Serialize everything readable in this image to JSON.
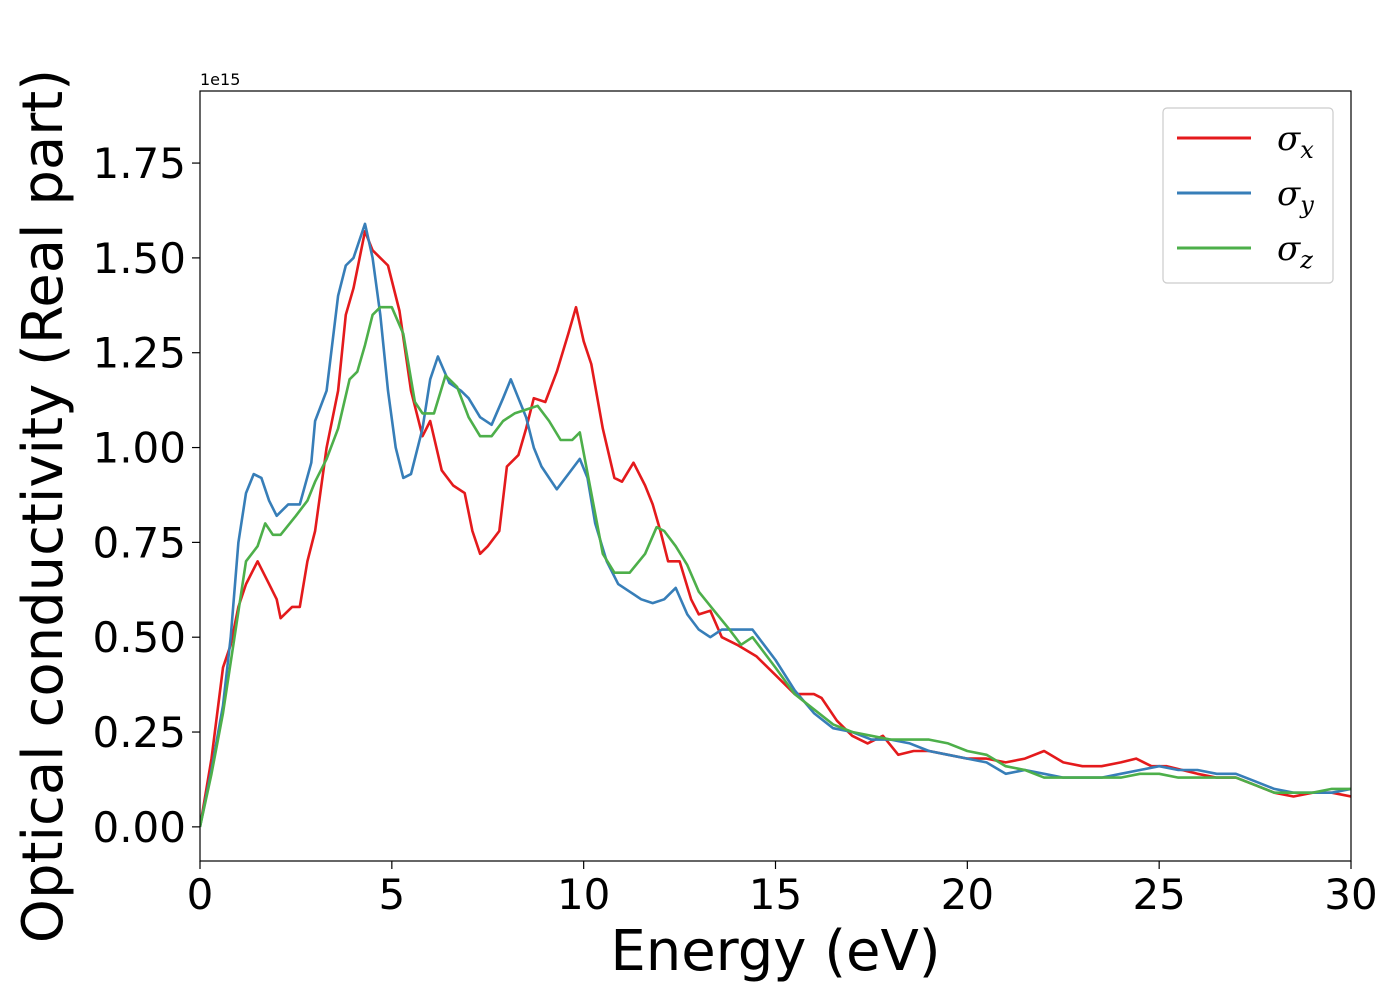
{
  "chart_data": {
    "type": "line",
    "title": "",
    "xlabel": "Energy (eV)",
    "ylabel": "Optical conductivity (Real part)",
    "y_offset_text": "1e15",
    "xlim": [
      0,
      30
    ],
    "ylim": [
      -0.09,
      1.94
    ],
    "x_ticks": [
      0,
      5,
      10,
      15,
      20,
      25,
      30
    ],
    "x_tick_labels": [
      "0",
      "5",
      "10",
      "15",
      "20",
      "25",
      "30"
    ],
    "y_ticks": [
      0.0,
      0.25,
      0.5,
      0.75,
      1.0,
      1.25,
      1.5,
      1.75
    ],
    "y_tick_labels": [
      "0.00",
      "0.25",
      "0.50",
      "0.75",
      "1.00",
      "1.25",
      "1.50",
      "1.75"
    ],
    "grid": false,
    "legend_position": "top-right",
    "series": [
      {
        "name": "σx",
        "legend_symbol": "σ",
        "legend_subscript": "x",
        "color": "#e41a1c",
        "points": [
          [
            0,
            0.0
          ],
          [
            0.3,
            0.18
          ],
          [
            0.6,
            0.42
          ],
          [
            0.8,
            0.48
          ],
          [
            1.0,
            0.58
          ],
          [
            1.2,
            0.64
          ],
          [
            1.5,
            0.7
          ],
          [
            1.8,
            0.64
          ],
          [
            2.0,
            0.6
          ],
          [
            2.1,
            0.55
          ],
          [
            2.4,
            0.58
          ],
          [
            2.6,
            0.58
          ],
          [
            2.8,
            0.7
          ],
          [
            3.0,
            0.78
          ],
          [
            3.3,
            1.0
          ],
          [
            3.6,
            1.15
          ],
          [
            3.8,
            1.35
          ],
          [
            4.0,
            1.42
          ],
          [
            4.3,
            1.57
          ],
          [
            4.5,
            1.52
          ],
          [
            4.7,
            1.5
          ],
          [
            4.9,
            1.48
          ],
          [
            5.2,
            1.36
          ],
          [
            5.5,
            1.15
          ],
          [
            5.8,
            1.03
          ],
          [
            6.0,
            1.07
          ],
          [
            6.3,
            0.94
          ],
          [
            6.6,
            0.9
          ],
          [
            6.9,
            0.88
          ],
          [
            7.1,
            0.78
          ],
          [
            7.3,
            0.72
          ],
          [
            7.5,
            0.74
          ],
          [
            7.8,
            0.78
          ],
          [
            8.0,
            0.95
          ],
          [
            8.3,
            0.98
          ],
          [
            8.5,
            1.05
          ],
          [
            8.7,
            1.13
          ],
          [
            9.0,
            1.12
          ],
          [
            9.3,
            1.2
          ],
          [
            9.6,
            1.3
          ],
          [
            9.8,
            1.37
          ],
          [
            10.0,
            1.28
          ],
          [
            10.2,
            1.22
          ],
          [
            10.5,
            1.05
          ],
          [
            10.8,
            0.92
          ],
          [
            11.0,
            0.91
          ],
          [
            11.3,
            0.96
          ],
          [
            11.6,
            0.9
          ],
          [
            11.8,
            0.85
          ],
          [
            12.0,
            0.78
          ],
          [
            12.2,
            0.7
          ],
          [
            12.5,
            0.7
          ],
          [
            12.8,
            0.6
          ],
          [
            13.0,
            0.56
          ],
          [
            13.3,
            0.57
          ],
          [
            13.6,
            0.5
          ],
          [
            14.0,
            0.48
          ],
          [
            14.5,
            0.45
          ],
          [
            15.0,
            0.4
          ],
          [
            15.5,
            0.35
          ],
          [
            16.0,
            0.35
          ],
          [
            16.2,
            0.34
          ],
          [
            16.6,
            0.28
          ],
          [
            17.0,
            0.24
          ],
          [
            17.4,
            0.22
          ],
          [
            17.8,
            0.24
          ],
          [
            18.2,
            0.19
          ],
          [
            18.6,
            0.2
          ],
          [
            19.0,
            0.2
          ],
          [
            19.5,
            0.19
          ],
          [
            20.0,
            0.18
          ],
          [
            20.5,
            0.18
          ],
          [
            21.0,
            0.17
          ],
          [
            21.5,
            0.18
          ],
          [
            22.0,
            0.2
          ],
          [
            22.5,
            0.17
          ],
          [
            23.0,
            0.16
          ],
          [
            23.5,
            0.16
          ],
          [
            24.0,
            0.17
          ],
          [
            24.4,
            0.18
          ],
          [
            24.8,
            0.16
          ],
          [
            25.2,
            0.16
          ],
          [
            25.6,
            0.15
          ],
          [
            26.0,
            0.14
          ],
          [
            26.5,
            0.13
          ],
          [
            27.0,
            0.13
          ],
          [
            27.5,
            0.11
          ],
          [
            28.0,
            0.09
          ],
          [
            28.5,
            0.08
          ],
          [
            29.0,
            0.09
          ],
          [
            29.5,
            0.09
          ],
          [
            30.0,
            0.08
          ]
        ]
      },
      {
        "name": "σy",
        "legend_symbol": "σ",
        "legend_subscript": "y",
        "color": "#377eb8",
        "points": [
          [
            0,
            0.0
          ],
          [
            0.3,
            0.15
          ],
          [
            0.6,
            0.32
          ],
          [
            0.8,
            0.5
          ],
          [
            1.0,
            0.75
          ],
          [
            1.2,
            0.88
          ],
          [
            1.4,
            0.93
          ],
          [
            1.6,
            0.92
          ],
          [
            1.8,
            0.86
          ],
          [
            2.0,
            0.82
          ],
          [
            2.3,
            0.85
          ],
          [
            2.6,
            0.85
          ],
          [
            2.9,
            0.96
          ],
          [
            3.0,
            1.07
          ],
          [
            3.3,
            1.15
          ],
          [
            3.6,
            1.4
          ],
          [
            3.8,
            1.48
          ],
          [
            4.0,
            1.5
          ],
          [
            4.3,
            1.59
          ],
          [
            4.5,
            1.5
          ],
          [
            4.7,
            1.35
          ],
          [
            4.9,
            1.15
          ],
          [
            5.1,
            1.0
          ],
          [
            5.3,
            0.92
          ],
          [
            5.5,
            0.93
          ],
          [
            5.8,
            1.05
          ],
          [
            6.0,
            1.18
          ],
          [
            6.2,
            1.24
          ],
          [
            6.5,
            1.17
          ],
          [
            6.8,
            1.15
          ],
          [
            7.0,
            1.13
          ],
          [
            7.3,
            1.08
          ],
          [
            7.6,
            1.06
          ],
          [
            7.9,
            1.13
          ],
          [
            8.1,
            1.18
          ],
          [
            8.3,
            1.13
          ],
          [
            8.5,
            1.08
          ],
          [
            8.7,
            1.0
          ],
          [
            8.9,
            0.95
          ],
          [
            9.1,
            0.92
          ],
          [
            9.3,
            0.89
          ],
          [
            9.6,
            0.93
          ],
          [
            9.9,
            0.97
          ],
          [
            10.1,
            0.92
          ],
          [
            10.3,
            0.8
          ],
          [
            10.6,
            0.7
          ],
          [
            10.9,
            0.64
          ],
          [
            11.2,
            0.62
          ],
          [
            11.5,
            0.6
          ],
          [
            11.8,
            0.59
          ],
          [
            12.1,
            0.6
          ],
          [
            12.4,
            0.63
          ],
          [
            12.7,
            0.56
          ],
          [
            13.0,
            0.52
          ],
          [
            13.3,
            0.5
          ],
          [
            13.6,
            0.52
          ],
          [
            14.0,
            0.52
          ],
          [
            14.4,
            0.52
          ],
          [
            14.7,
            0.48
          ],
          [
            15.0,
            0.44
          ],
          [
            15.5,
            0.36
          ],
          [
            16.0,
            0.3
          ],
          [
            16.5,
            0.26
          ],
          [
            17.0,
            0.25
          ],
          [
            17.5,
            0.23
          ],
          [
            18.0,
            0.23
          ],
          [
            18.5,
            0.22
          ],
          [
            19.0,
            0.2
          ],
          [
            19.5,
            0.19
          ],
          [
            20.0,
            0.18
          ],
          [
            20.5,
            0.17
          ],
          [
            21.0,
            0.14
          ],
          [
            21.5,
            0.15
          ],
          [
            22.0,
            0.14
          ],
          [
            22.5,
            0.13
          ],
          [
            23.0,
            0.13
          ],
          [
            23.5,
            0.13
          ],
          [
            24.0,
            0.14
          ],
          [
            24.5,
            0.15
          ],
          [
            25.0,
            0.16
          ],
          [
            25.5,
            0.15
          ],
          [
            26.0,
            0.15
          ],
          [
            26.5,
            0.14
          ],
          [
            27.0,
            0.14
          ],
          [
            27.5,
            0.12
          ],
          [
            28.0,
            0.1
          ],
          [
            28.5,
            0.09
          ],
          [
            29.0,
            0.09
          ],
          [
            29.5,
            0.09
          ],
          [
            30.0,
            0.1
          ]
        ]
      },
      {
        "name": "σz",
        "legend_symbol": "σ",
        "legend_subscript": "z",
        "color": "#4daf4a",
        "points": [
          [
            0,
            0.0
          ],
          [
            0.3,
            0.14
          ],
          [
            0.6,
            0.3
          ],
          [
            0.9,
            0.5
          ],
          [
            1.2,
            0.7
          ],
          [
            1.5,
            0.74
          ],
          [
            1.7,
            0.8
          ],
          [
            1.9,
            0.77
          ],
          [
            2.1,
            0.77
          ],
          [
            2.5,
            0.82
          ],
          [
            2.8,
            0.86
          ],
          [
            3.0,
            0.91
          ],
          [
            3.3,
            0.97
          ],
          [
            3.6,
            1.05
          ],
          [
            3.9,
            1.18
          ],
          [
            4.1,
            1.2
          ],
          [
            4.3,
            1.27
          ],
          [
            4.5,
            1.35
          ],
          [
            4.7,
            1.37
          ],
          [
            5.0,
            1.37
          ],
          [
            5.3,
            1.3
          ],
          [
            5.6,
            1.12
          ],
          [
            5.8,
            1.09
          ],
          [
            6.1,
            1.09
          ],
          [
            6.4,
            1.19
          ],
          [
            6.7,
            1.16
          ],
          [
            7.0,
            1.08
          ],
          [
            7.3,
            1.03
          ],
          [
            7.6,
            1.03
          ],
          [
            7.9,
            1.07
          ],
          [
            8.2,
            1.09
          ],
          [
            8.5,
            1.1
          ],
          [
            8.8,
            1.11
          ],
          [
            9.1,
            1.07
          ],
          [
            9.4,
            1.02
          ],
          [
            9.7,
            1.02
          ],
          [
            9.9,
            1.04
          ],
          [
            10.2,
            0.88
          ],
          [
            10.5,
            0.72
          ],
          [
            10.8,
            0.67
          ],
          [
            11.2,
            0.67
          ],
          [
            11.6,
            0.72
          ],
          [
            11.9,
            0.79
          ],
          [
            12.1,
            0.78
          ],
          [
            12.4,
            0.74
          ],
          [
            12.7,
            0.69
          ],
          [
            13.0,
            0.62
          ],
          [
            13.4,
            0.57
          ],
          [
            13.8,
            0.52
          ],
          [
            14.1,
            0.48
          ],
          [
            14.4,
            0.5
          ],
          [
            14.7,
            0.46
          ],
          [
            15.0,
            0.42
          ],
          [
            15.5,
            0.35
          ],
          [
            16.0,
            0.31
          ],
          [
            16.5,
            0.27
          ],
          [
            17.0,
            0.25
          ],
          [
            17.5,
            0.24
          ],
          [
            18.0,
            0.23
          ],
          [
            18.5,
            0.23
          ],
          [
            19.0,
            0.23
          ],
          [
            19.5,
            0.22
          ],
          [
            20.0,
            0.2
          ],
          [
            20.5,
            0.19
          ],
          [
            21.0,
            0.16
          ],
          [
            21.5,
            0.15
          ],
          [
            22.0,
            0.13
          ],
          [
            22.5,
            0.13
          ],
          [
            23.0,
            0.13
          ],
          [
            23.5,
            0.13
          ],
          [
            24.0,
            0.13
          ],
          [
            24.5,
            0.14
          ],
          [
            25.0,
            0.14
          ],
          [
            25.5,
            0.13
          ],
          [
            26.0,
            0.13
          ],
          [
            26.5,
            0.13
          ],
          [
            27.0,
            0.13
          ],
          [
            27.5,
            0.11
          ],
          [
            28.0,
            0.09
          ],
          [
            28.5,
            0.09
          ],
          [
            29.0,
            0.09
          ],
          [
            29.5,
            0.1
          ],
          [
            30.0,
            0.1
          ]
        ]
      }
    ]
  }
}
